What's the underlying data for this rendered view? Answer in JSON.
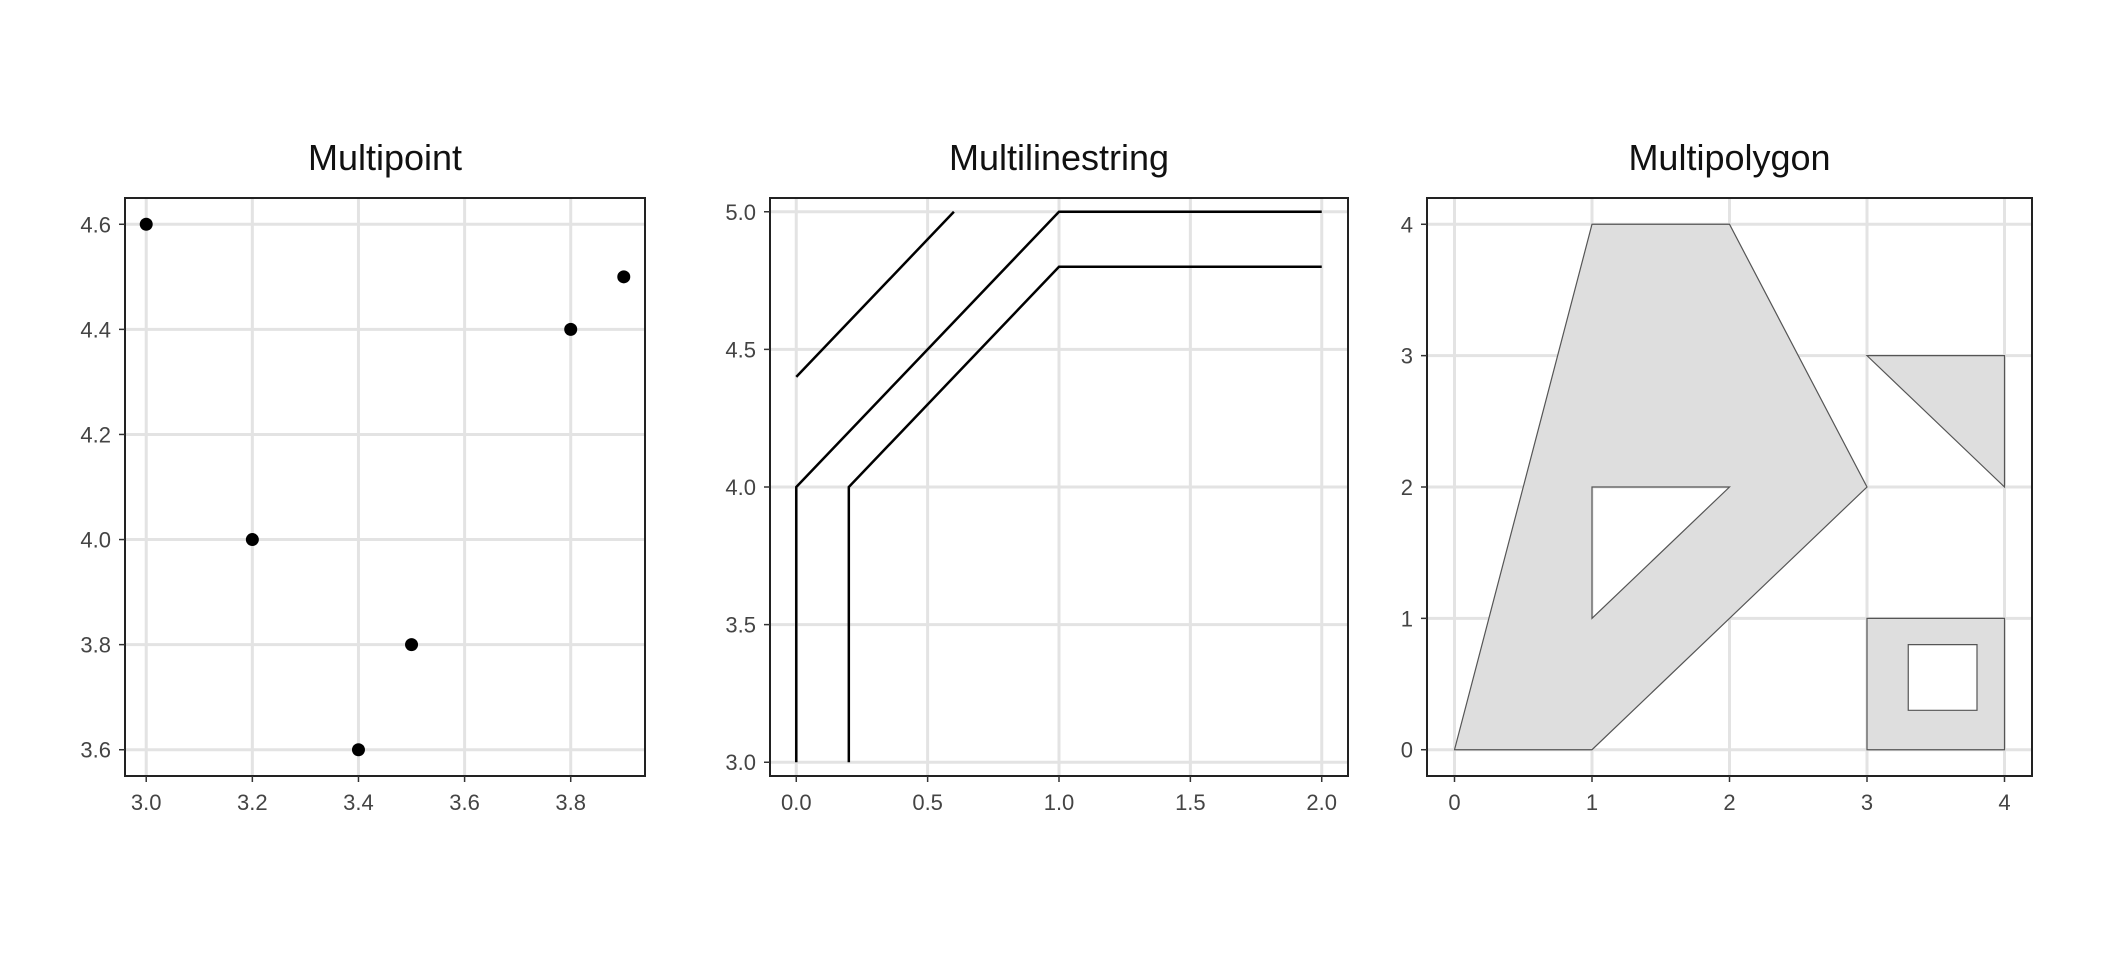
{
  "chart_data": [
    {
      "type": "scatter",
      "title": "Multipoint",
      "xlabel": "",
      "ylabel": "",
      "xlim": [
        2.96,
        3.94
      ],
      "ylim": [
        3.55,
        4.65
      ],
      "x_ticks": [
        3.0,
        3.2,
        3.4,
        3.6,
        3.8
      ],
      "x_tick_labels": [
        "3.0",
        "3.2",
        "3.4",
        "3.6",
        "3.8"
      ],
      "y_ticks": [
        3.6,
        3.8,
        4.0,
        4.2,
        4.4,
        4.6
      ],
      "y_tick_labels": [
        "3.6",
        "3.8",
        "4.0",
        "4.2",
        "4.4",
        "4.6"
      ],
      "grid": true,
      "points": [
        [
          3.0,
          4.6
        ],
        [
          3.2,
          4.0
        ],
        [
          3.4,
          3.6
        ],
        [
          3.5,
          3.8
        ],
        [
          3.8,
          4.4
        ],
        [
          3.9,
          4.5
        ]
      ]
    },
    {
      "type": "line",
      "title": "Multilinestring",
      "xlabel": "",
      "ylabel": "",
      "xlim": [
        -0.1,
        2.1
      ],
      "ylim": [
        2.95,
        5.05
      ],
      "x_ticks": [
        0.0,
        0.5,
        1.0,
        1.5,
        2.0
      ],
      "x_tick_labels": [
        "0.0",
        "0.5",
        "1.0",
        "1.5",
        "2.0"
      ],
      "y_ticks": [
        3.0,
        3.5,
        4.0,
        4.5,
        5.0
      ],
      "y_tick_labels": [
        "3.0",
        "3.5",
        "4.0",
        "4.5",
        "5.0"
      ],
      "grid": true,
      "lines": [
        [
          [
            0.0,
            4.4
          ],
          [
            0.6,
            5.0
          ]
        ],
        [
          [
            0.0,
            3.0
          ],
          [
            0.0,
            4.0
          ],
          [
            1.0,
            5.0
          ],
          [
            2.0,
            5.0
          ]
        ],
        [
          [
            0.2,
            3.0
          ],
          [
            0.2,
            4.0
          ],
          [
            1.0,
            4.8
          ],
          [
            2.0,
            4.8
          ]
        ]
      ]
    },
    {
      "type": "polygon",
      "title": "Multipolygon",
      "xlabel": "",
      "ylabel": "",
      "xlim": [
        -0.2,
        4.2
      ],
      "ylim": [
        -0.2,
        4.2
      ],
      "x_ticks": [
        0,
        1,
        2,
        3,
        4
      ],
      "x_tick_labels": [
        "0",
        "1",
        "2",
        "3",
        "4"
      ],
      "y_ticks": [
        0,
        1,
        2,
        3,
        4
      ],
      "y_tick_labels": [
        "0",
        "1",
        "2",
        "3",
        "4"
      ],
      "grid": true,
      "fill_color": "#dedede",
      "polygons": [
        {
          "outer": [
            [
              0,
              0
            ],
            [
              1,
              4
            ],
            [
              2,
              4
            ],
            [
              3,
              2
            ],
            [
              1,
              0
            ]
          ],
          "holes": [
            [
              [
                1,
                2
              ],
              [
                2,
                2
              ],
              [
                1,
                1
              ]
            ]
          ]
        },
        {
          "outer": [
            [
              3,
              3
            ],
            [
              4,
              3
            ],
            [
              4,
              2
            ]
          ],
          "holes": []
        },
        {
          "outer": [
            [
              3,
              0
            ],
            [
              4,
              0
            ],
            [
              4,
              1
            ],
            [
              3,
              1
            ]
          ],
          "holes": [
            [
              [
                3.3,
                0.3
              ],
              [
                3.8,
                0.3
              ],
              [
                3.8,
                0.8
              ],
              [
                3.3,
                0.8
              ]
            ]
          ]
        }
      ]
    }
  ]
}
